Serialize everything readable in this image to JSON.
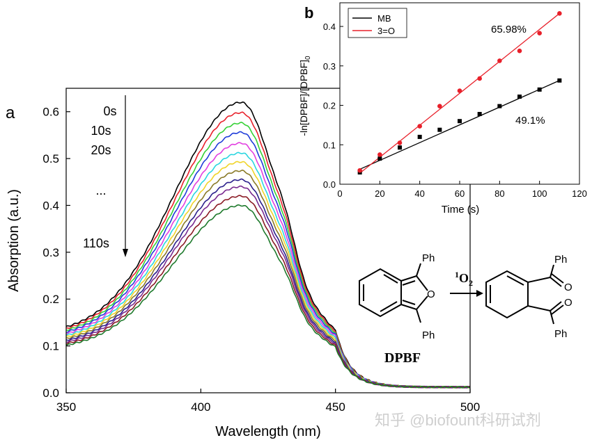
{
  "chart_data": [
    {
      "type": "line",
      "panel_label": "a",
      "xlabel": "Wavelength (nm)",
      "ylabel": "Absorption (a.u.)",
      "xlim": [
        350,
        500
      ],
      "ylim": [
        0,
        0.65
      ],
      "x_ticks": [
        350,
        400,
        450,
        500
      ],
      "y_ticks": [
        0.0,
        0.1,
        0.2,
        0.3,
        0.4,
        0.5,
        0.6
      ],
      "grid": false,
      "time_labels": [
        "0s",
        "10s",
        "20s",
        "...",
        "110s"
      ],
      "series": [
        {
          "color": "#000000",
          "base": 0.125,
          "peak": 0.62
        },
        {
          "color": "#e8202a",
          "base": 0.122,
          "peak": 0.598
        },
        {
          "color": "#35d135",
          "base": 0.119,
          "peak": 0.576
        },
        {
          "color": "#1f3cd9",
          "base": 0.116,
          "peak": 0.556
        },
        {
          "color": "#e23fe0",
          "base": 0.113,
          "peak": 0.533
        },
        {
          "color": "#2ad6e0",
          "base": 0.11,
          "peak": 0.512
        },
        {
          "color": "#f0d428",
          "base": 0.107,
          "peak": 0.493
        },
        {
          "color": "#8a7a28",
          "base": 0.104,
          "peak": 0.474
        },
        {
          "color": "#2a1f8c",
          "base": 0.101,
          "peak": 0.455
        },
        {
          "color": "#7a2a90",
          "base": 0.098,
          "peak": 0.44
        },
        {
          "color": "#8a1a24",
          "base": 0.095,
          "peak": 0.42
        },
        {
          "color": "#1e7a2c",
          "base": 0.092,
          "peak": 0.4
        }
      ]
    },
    {
      "type": "scatter",
      "panel_label": "b",
      "xlabel": "Time (s)",
      "ylabel": "-ln[DPBF]/[DPBF]",
      "ylabel_subscript": "0",
      "xlim": [
        0,
        120
      ],
      "ylim": [
        0,
        0.46
      ],
      "x_ticks": [
        0,
        20,
        40,
        60,
        80,
        100,
        120
      ],
      "y_ticks": [
        0.0,
        0.1,
        0.2,
        0.3,
        0.4
      ],
      "legend_position": "top-left",
      "series": [
        {
          "name": "MB",
          "color": "#000000",
          "marker": "square",
          "x": [
            10,
            20,
            30,
            40,
            50,
            60,
            70,
            80,
            90,
            100,
            110
          ],
          "y": [
            0.03,
            0.065,
            0.093,
            0.12,
            0.138,
            0.16,
            0.178,
            0.198,
            0.222,
            0.24,
            0.263
          ],
          "fit": [
            [
              10,
              0.038
            ],
            [
              110,
              0.263
            ]
          ],
          "annotation": "49.1%"
        },
        {
          "name": "3=O",
          "color": "#e8202a",
          "marker": "circle",
          "x": [
            10,
            20,
            30,
            40,
            50,
            60,
            70,
            80,
            90,
            100,
            110
          ],
          "y": [
            0.035,
            0.075,
            0.105,
            0.147,
            0.198,
            0.237,
            0.268,
            0.313,
            0.338,
            0.383,
            0.433
          ],
          "fit": [
            [
              10,
              0.028
            ],
            [
              110,
              0.433
            ]
          ],
          "annotation": "65.98%"
        }
      ]
    }
  ],
  "scheme": {
    "reactant_name": "DPBF",
    "reagent": "O",
    "reagent_superscript": "1",
    "reagent_subscript": "2",
    "ph": "Ph",
    "oxygen": "O"
  },
  "watermark": "知乎 @biofount科研试剂"
}
